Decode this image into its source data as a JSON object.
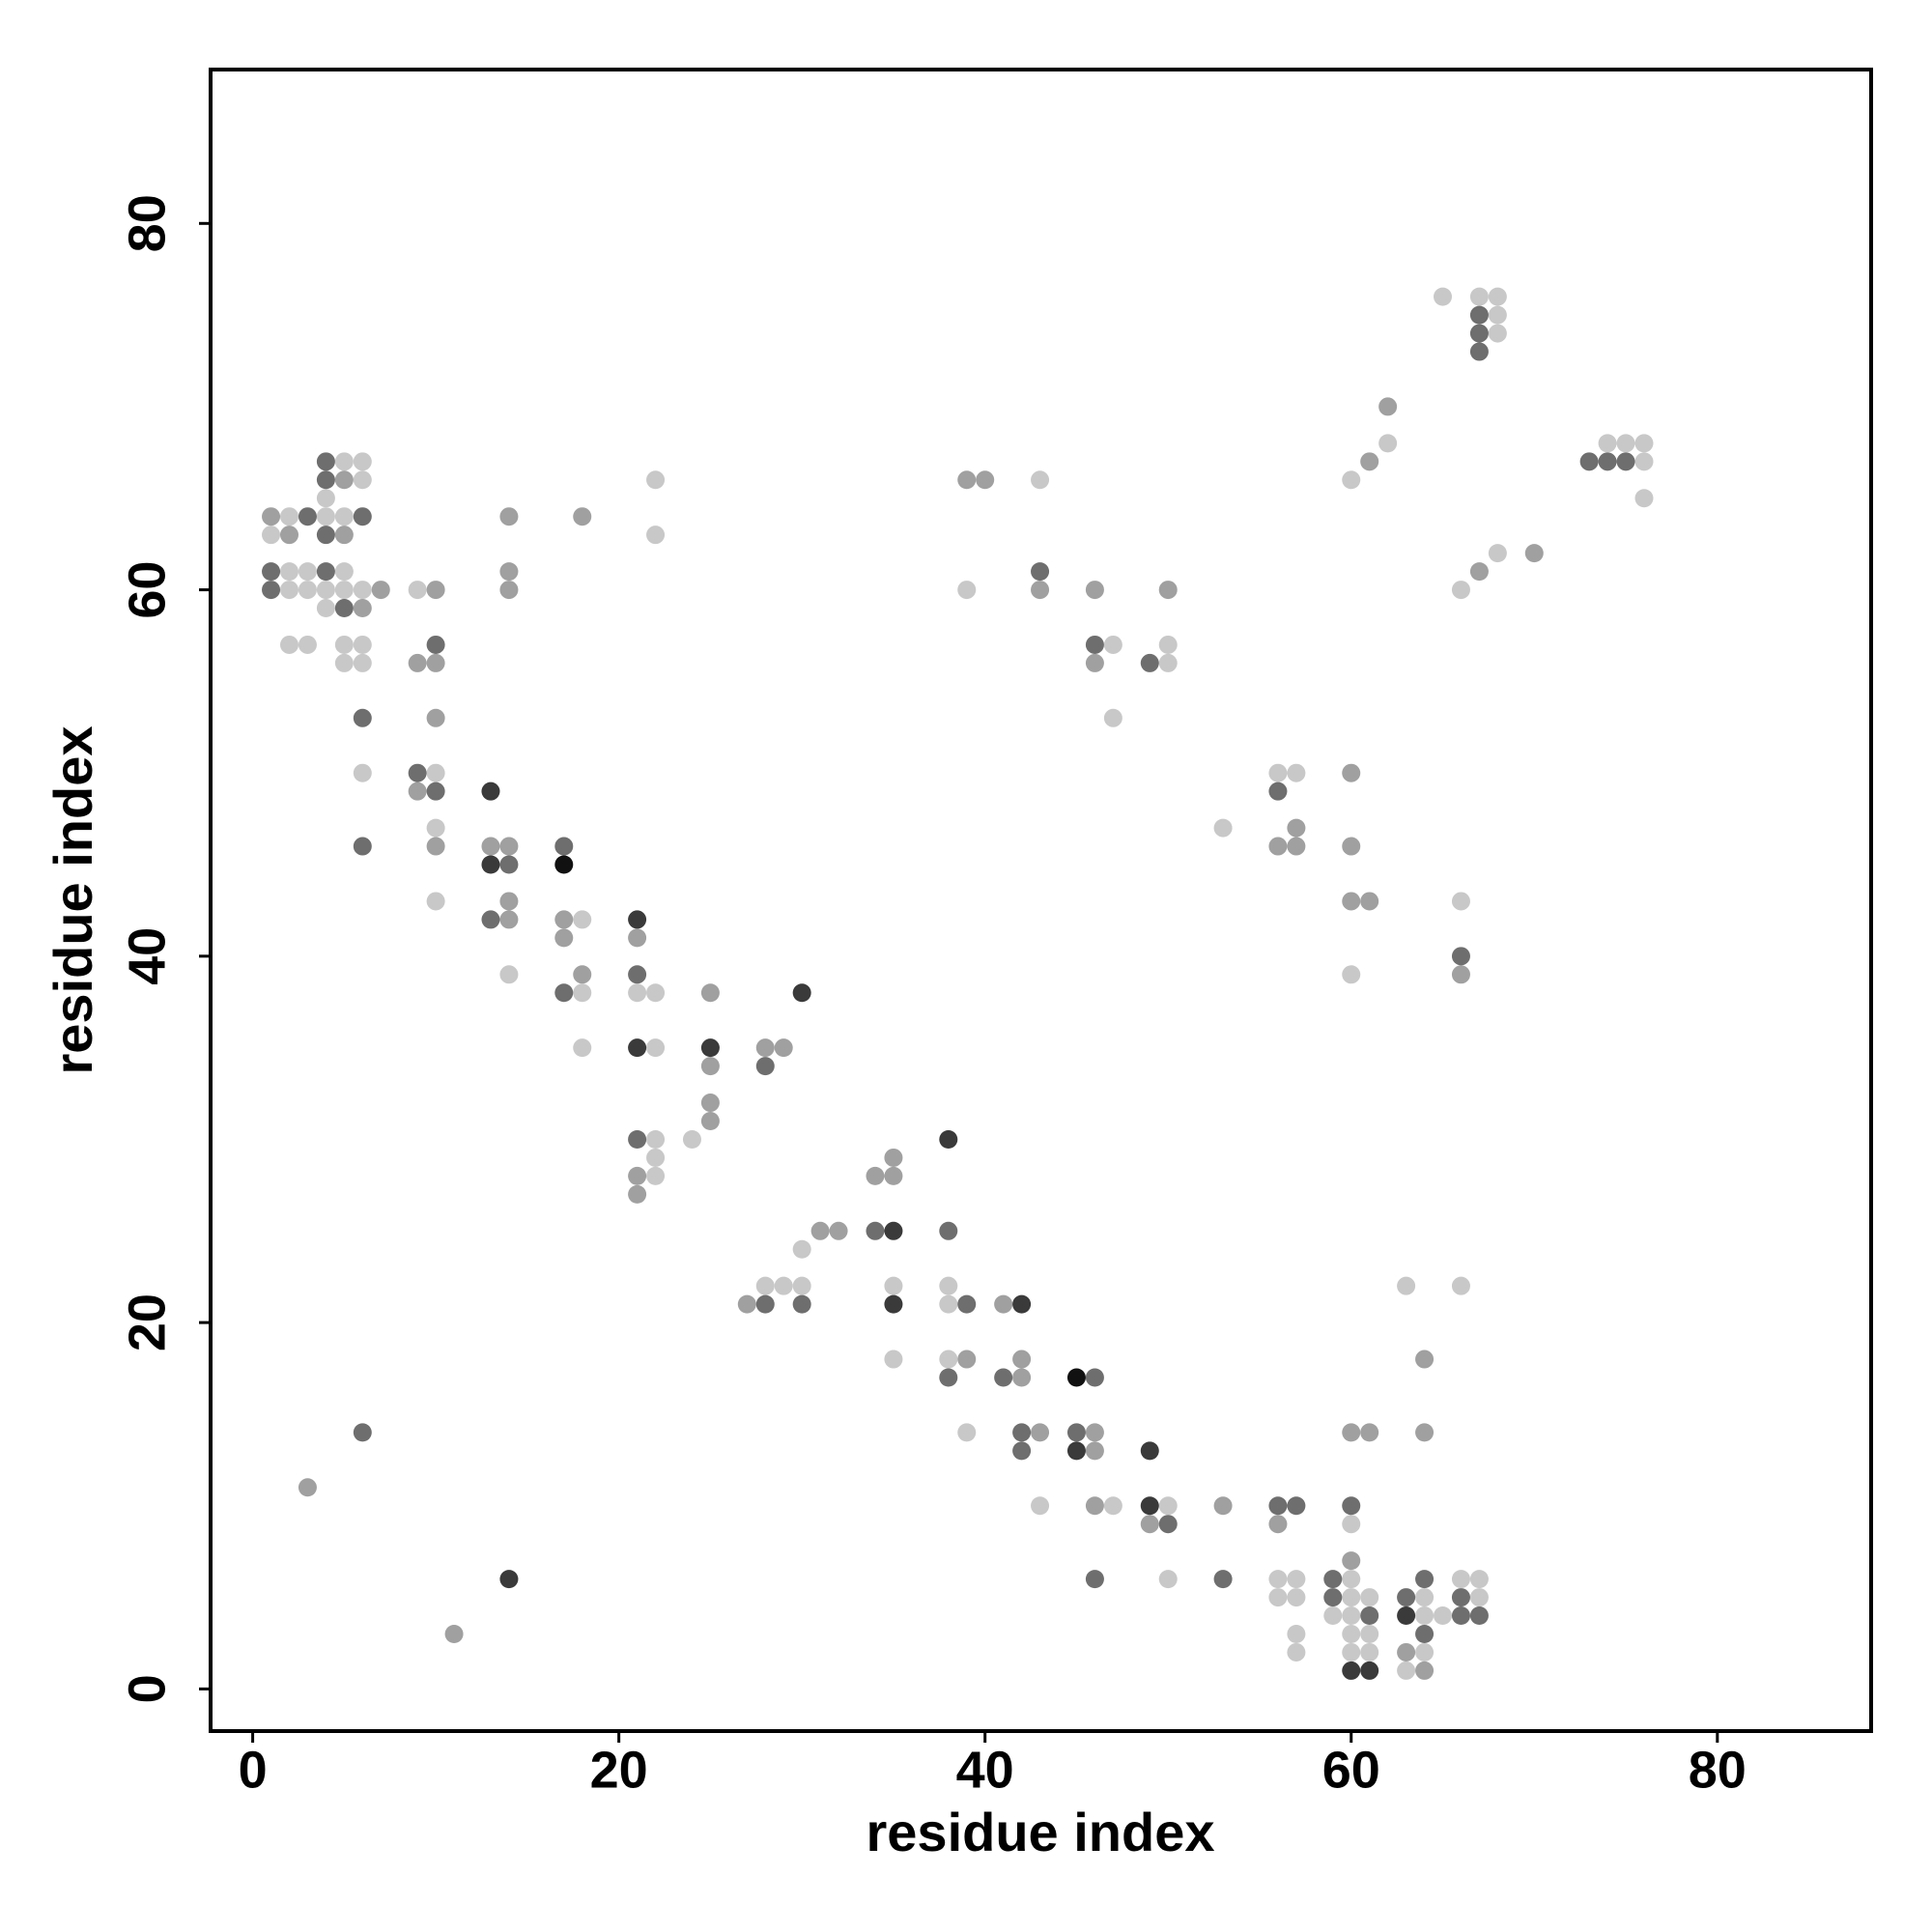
{
  "chart_data": {
    "type": "scatter",
    "xlabel": "residue index",
    "ylabel": "residue index",
    "xlim": [
      -2.3,
      88.4
    ],
    "ylim": [
      -2.3,
      88.4
    ],
    "xticks": [
      0,
      20,
      40,
      60,
      80
    ],
    "yticks": [
      0,
      20,
      40,
      60,
      80
    ],
    "series": [
      {
        "color": "#c8c8c8",
        "x": [
          1,
          2,
          2,
          2,
          2,
          3,
          3,
          3,
          4,
          4,
          4,
          4,
          5,
          5,
          5,
          5,
          5,
          5,
          6,
          6,
          6,
          6,
          6,
          6,
          9,
          10,
          10,
          10,
          14,
          18,
          18,
          18,
          21,
          22,
          22,
          22,
          22,
          22,
          22,
          22,
          24,
          28,
          29,
          30,
          30,
          35,
          35,
          38,
          38,
          38,
          39,
          39,
          43,
          43,
          47,
          47,
          47,
          50,
          50,
          50,
          50,
          53,
          56,
          56,
          56,
          57,
          57,
          57,
          57,
          57,
          59,
          60,
          60,
          60,
          60,
          60,
          60,
          60,
          60,
          61,
          61,
          61,
          62,
          63,
          63,
          64,
          64,
          64,
          65,
          65,
          66,
          66,
          66,
          66,
          67,
          67,
          67,
          68,
          68,
          68,
          68,
          74,
          75,
          76,
          76,
          76
        ],
        "values": [
          63,
          64,
          61,
          60,
          57,
          61,
          60,
          57,
          65,
          64,
          60,
          59,
          67,
          64,
          61,
          60,
          57,
          56,
          67,
          66,
          60,
          57,
          56,
          50,
          60,
          50,
          47,
          43,
          39,
          42,
          38,
          35,
          38,
          66,
          63,
          38,
          35,
          30,
          29,
          28,
          30,
          22,
          22,
          24,
          22,
          22,
          18,
          22,
          21,
          18,
          60,
          14,
          66,
          10,
          57,
          53,
          10,
          57,
          56,
          10,
          6,
          47,
          50,
          6,
          5,
          50,
          6,
          5,
          3,
          2,
          4,
          66,
          39,
          9,
          6,
          5,
          4,
          3,
          2,
          5,
          3,
          2,
          68,
          22,
          1,
          5,
          4,
          2,
          76,
          4,
          60,
          43,
          22,
          6,
          76,
          6,
          5,
          76,
          75,
          74,
          62,
          68,
          68,
          68,
          67,
          65
        ]
      },
      {
        "color": "#a0a0a0",
        "x": [
          1,
          2,
          3,
          5,
          5,
          6,
          7,
          9,
          9,
          10,
          10,
          10,
          10,
          11,
          13,
          14,
          14,
          14,
          14,
          14,
          14,
          17,
          17,
          18,
          18,
          21,
          21,
          21,
          25,
          25,
          25,
          25,
          27,
          28,
          29,
          31,
          32,
          34,
          35,
          35,
          39,
          39,
          40,
          41,
          42,
          42,
          43,
          43,
          46,
          46,
          46,
          46,
          46,
          49,
          50,
          53,
          56,
          56,
          57,
          57,
          60,
          60,
          60,
          60,
          60,
          61,
          61,
          61,
          62,
          63,
          64,
          64,
          64,
          66,
          67,
          70
        ],
        "values": [
          64,
          63,
          11,
          66,
          63,
          59,
          60,
          56,
          49,
          60,
          56,
          53,
          46,
          3,
          46,
          64,
          61,
          60,
          46,
          43,
          42,
          42,
          41,
          64,
          39,
          41,
          28,
          27,
          38,
          34,
          32,
          31,
          21,
          35,
          35,
          25,
          25,
          28,
          29,
          28,
          66,
          18,
          66,
          21,
          18,
          17,
          60,
          14,
          60,
          56,
          14,
          13,
          10,
          9,
          60,
          10,
          46,
          9,
          47,
          46,
          50,
          46,
          43,
          14,
          7,
          67,
          43,
          14,
          70,
          2,
          18,
          14,
          1,
          39,
          61,
          62
        ]
      },
      {
        "color": "#6e6e6e",
        "x": [
          1,
          1,
          3,
          4,
          4,
          4,
          4,
          5,
          6,
          6,
          6,
          6,
          9,
          10,
          10,
          13,
          14,
          17,
          17,
          21,
          21,
          28,
          28,
          30,
          34,
          38,
          38,
          39,
          41,
          42,
          42,
          43,
          45,
          46,
          46,
          46,
          49,
          50,
          53,
          56,
          56,
          57,
          59,
          59,
          60,
          61,
          63,
          64,
          64,
          66,
          66,
          66,
          67,
          67,
          67,
          67,
          73,
          74,
          75
        ],
        "values": [
          61,
          60,
          64,
          67,
          66,
          63,
          61,
          59,
          64,
          53,
          46,
          14,
          50,
          57,
          49,
          42,
          45,
          46,
          38,
          39,
          30,
          34,
          21,
          21,
          25,
          25,
          17,
          21,
          17,
          14,
          13,
          61,
          14,
          57,
          17,
          6,
          56,
          9,
          6,
          49,
          10,
          10,
          6,
          5,
          10,
          4,
          5,
          6,
          3,
          40,
          5,
          4,
          75,
          74,
          73,
          4,
          67,
          67,
          67
        ]
      },
      {
        "color": "#3a3a3a",
        "x": [
          13,
          13,
          14,
          21,
          21,
          25,
          30,
          35,
          35,
          38,
          42,
          45,
          49,
          49,
          60,
          61,
          63
        ],
        "values": [
          49,
          45,
          6,
          42,
          35,
          35,
          38,
          25,
          21,
          30,
          21,
          13,
          13,
          10,
          1,
          1,
          4
        ]
      },
      {
        "color": "#111111",
        "x": [
          17,
          45
        ],
        "values": [
          45,
          17
        ]
      }
    ]
  }
}
